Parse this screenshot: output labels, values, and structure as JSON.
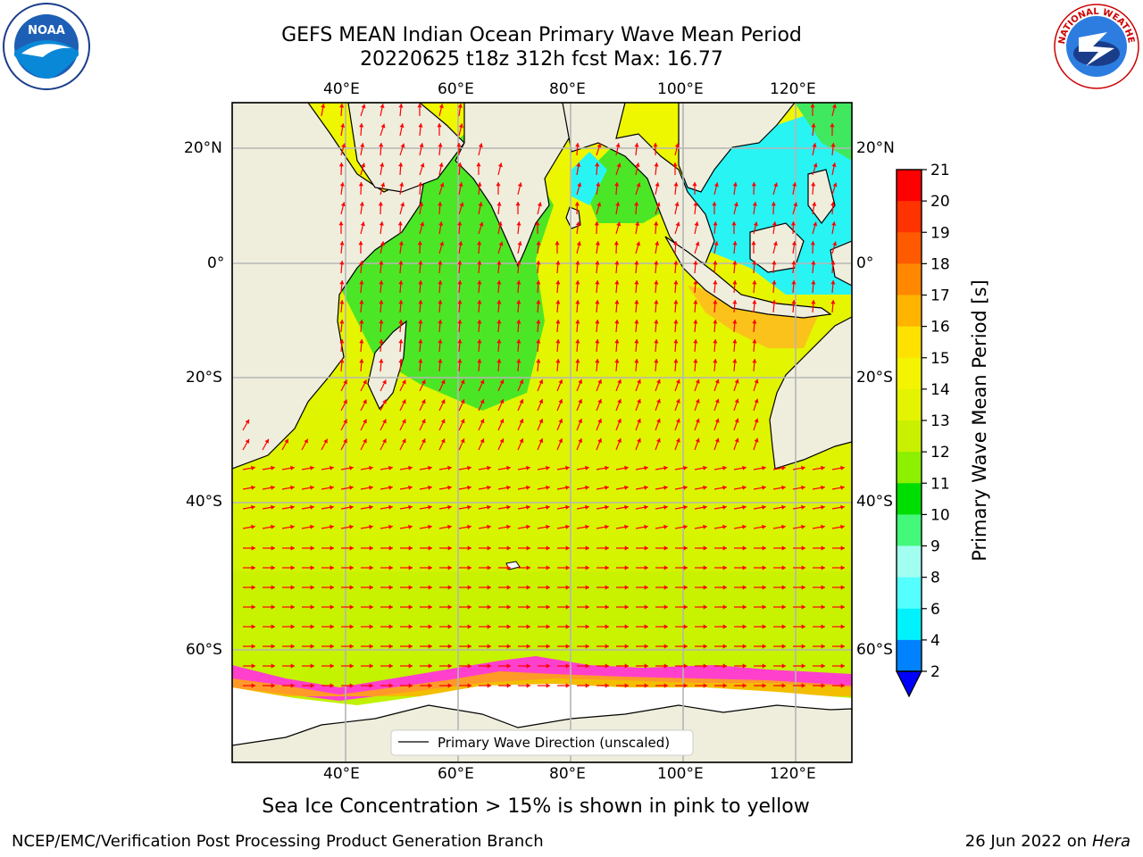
{
  "header": {
    "title_line1": "GEFS MEAN Indian Ocean Primary Wave Mean Period",
    "title_line2": "20220625 t18z 312h fcst   Max: 16.77"
  },
  "logos": {
    "left": {
      "icon": "noaa-logo-icon",
      "text": "NOAA"
    },
    "right": {
      "icon": "nws-logo-icon",
      "text": "NATIONAL WEATHER SERVICE"
    }
  },
  "map": {
    "lon_labels": [
      "40°E",
      "60°E",
      "80°E",
      "100°E",
      "120°E"
    ],
    "lat_labels": [
      "20°N",
      "0°",
      "20°S",
      "40°S",
      "60°S"
    ],
    "legend_label": "Primary Wave Direction (unscaled)",
    "colors": {
      "land": "#efeedd",
      "ocean_main": "#eef500",
      "ocean_green": "#2ee000",
      "ocean_cyan": "#22f4f4",
      "ocean_orange": "#ffb400",
      "ice": "#ff33cc",
      "arrow": "#ff0000"
    }
  },
  "colorbar": {
    "label": "Primary Wave Mean Period [s]",
    "ticks": [
      "21",
      "20",
      "19",
      "18",
      "17",
      "16",
      "15",
      "14",
      "13",
      "12",
      "11",
      "10",
      "9",
      "8",
      "6",
      "4",
      "2"
    ],
    "colors": [
      "#ff0000",
      "#ff3300",
      "#ff5a00",
      "#ff8800",
      "#ffb400",
      "#ffe100",
      "#f4f400",
      "#e4f400",
      "#c8f000",
      "#8cf000",
      "#00dd00",
      "#44f87a",
      "#a2fff0",
      "#55ffff",
      "#00f2ff",
      "#0082ff"
    ],
    "extend_color": "#0000ff"
  },
  "notes": {
    "ice_note": "Sea Ice Concentration > 15% is shown in pink to yellow"
  },
  "footer": {
    "left": "NCEP/EMC/Verification Post Processing Product Generation Branch",
    "date": "26 Jun 2022 on",
    "machine": "Hera"
  }
}
